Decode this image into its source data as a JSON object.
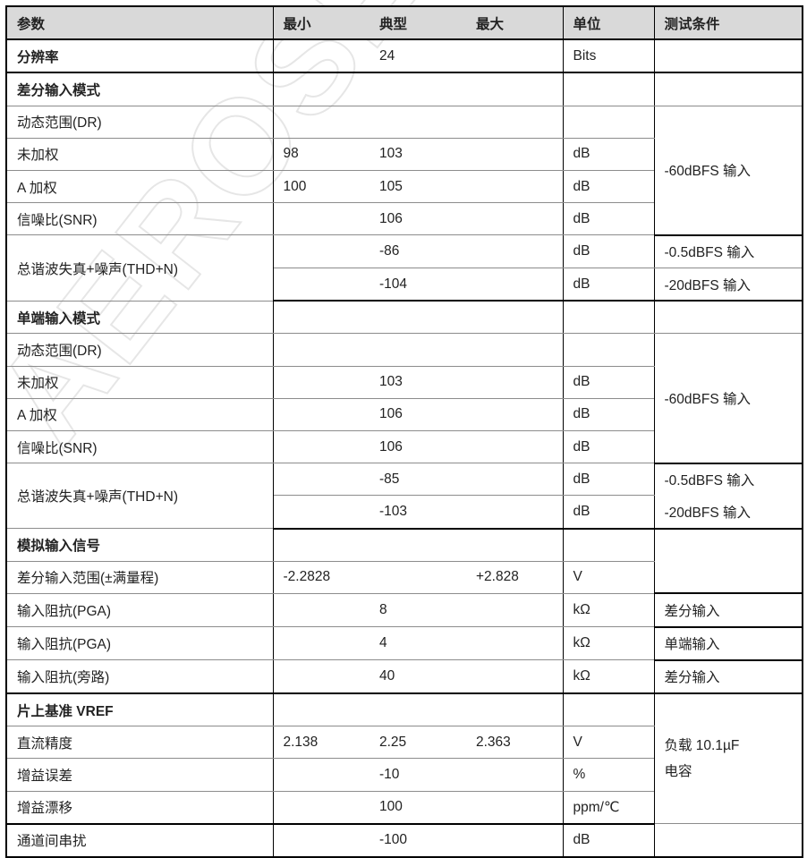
{
  "watermark": "AEROSEMI C",
  "header": {
    "param": "参数",
    "min": "最小",
    "typ": "典型",
    "max": "最大",
    "unit": "单位",
    "cond": "测试条件"
  },
  "rows": [
    {
      "param": "分辨率",
      "typ": "24",
      "unit": "Bits",
      "cond": ""
    },
    {
      "param": "差分输入模式",
      "cond": ""
    },
    {
      "param": "动态范围(DR)",
      "cond": "-60dBFS 输入"
    },
    {
      "param": "未加权",
      "min": "98",
      "typ": "103",
      "unit": "dB"
    },
    {
      "param": "A 加权",
      "min": "100",
      "typ": "105",
      "unit": "dB"
    },
    {
      "param": "信噪比(SNR)",
      "typ": "106",
      "unit": "dB"
    },
    {
      "param": "总谐波失真+噪声(THD+N)",
      "typ": "-86",
      "unit": "dB",
      "cond": "-0.5dBFS 输入"
    },
    {
      "typ": "-104",
      "unit": "dB",
      "cond": "-20dBFS 输入"
    },
    {
      "param": "单端输入模式",
      "cond": ""
    },
    {
      "param": "动态范围(DR)",
      "cond": "-60dBFS 输入"
    },
    {
      "param": "未加权",
      "typ": "103",
      "unit": "dB"
    },
    {
      "param": "A 加权",
      "typ": "106",
      "unit": "dB"
    },
    {
      "param": "信噪比(SNR)",
      "typ": "106",
      "unit": "dB"
    },
    {
      "param": "总谐波失真+噪声(THD+N)",
      "typ": "-85",
      "unit": "dB",
      "cond": "-0.5dBFS 输入"
    },
    {
      "typ": "-103",
      "unit": "dB",
      "cond": "-20dBFS 输入"
    },
    {
      "param": "模拟输入信号",
      "cond": ""
    },
    {
      "param": "差分输入范围(±满量程)",
      "min": "-2.2828",
      "max": "+2.828",
      "unit": "V"
    },
    {
      "param": "输入阻抗(PGA)",
      "typ": "8",
      "unit": "kΩ",
      "cond": "差分输入"
    },
    {
      "param": "输入阻抗(PGA)",
      "typ": "4",
      "unit": "kΩ",
      "cond": "单端输入"
    },
    {
      "param": "输入阻抗(旁路)",
      "typ": "40",
      "unit": "kΩ",
      "cond": "差分输入"
    },
    {
      "param": "片上基准 VREF",
      "cond_lines": [
        "负载 10.1µF",
        "电容"
      ]
    },
    {
      "param": "直流精度",
      "min": "2.138",
      "typ": "2.25",
      "max": "2.363",
      "unit": "V"
    },
    {
      "param": "增益误差",
      "typ": "-10",
      "unit": "%"
    },
    {
      "param": "增益漂移",
      "typ": "100",
      "unit": "ppm/℃"
    },
    {
      "param": "通道间串扰",
      "typ": "-100",
      "unit": "dB",
      "cond": ""
    }
  ]
}
